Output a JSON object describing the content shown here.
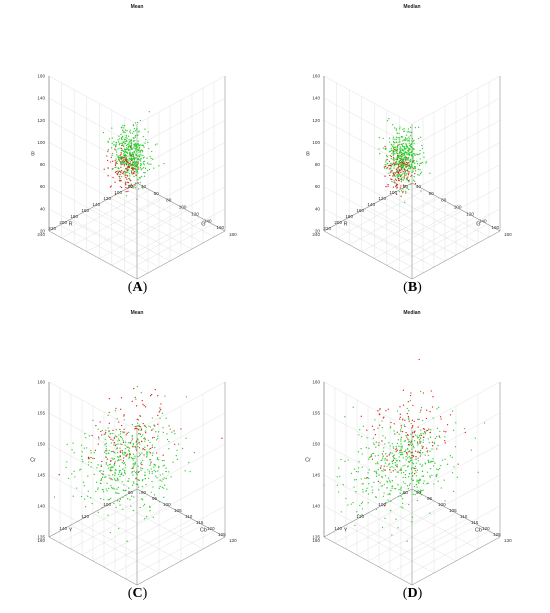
{
  "colors": {
    "class_1": "#2ecc2e",
    "class_2": "#e02020",
    "grid": "#d9d9d9",
    "axis": "#8c8c8c"
  },
  "chart_data": [
    {
      "id": "A",
      "type": "scatter3d",
      "caption_letter": "A",
      "title": "Mean",
      "xlabel": "R",
      "ylabel": "G",
      "zlabel": "B",
      "xlim": [
        60,
        240
      ],
      "ylim": [
        40,
        180
      ],
      "zlim": [
        20,
        180
      ],
      "xticks": [
        "80",
        "100",
        "120",
        "140",
        "160",
        "180",
        "200",
        "220",
        "240"
      ],
      "yticks": [
        "40",
        "60",
        "80",
        "100",
        "120",
        "140",
        "160",
        "180"
      ],
      "zticks": [
        "20",
        "40",
        "60",
        "80",
        "100",
        "120",
        "140",
        "160"
      ],
      "grid": true,
      "series": [
        {
          "color_key": "class_1",
          "center": [
            170,
            115,
            105
          ],
          "spread": [
            28,
            26,
            26
          ],
          "count": 480,
          "corr": 0.9
        },
        {
          "color_key": "class_2",
          "center": [
            150,
            90,
            75
          ],
          "spread": [
            22,
            20,
            18
          ],
          "count": 110,
          "corr": 0.85
        }
      ]
    },
    {
      "id": "B",
      "type": "scatter3d",
      "caption_letter": "B",
      "title": "Median",
      "xlabel": "R",
      "ylabel": "G",
      "zlabel": "B",
      "xlim": [
        60,
        240
      ],
      "ylim": [
        40,
        180
      ],
      "zlim": [
        20,
        180
      ],
      "xticks": [
        "80",
        "100",
        "120",
        "140",
        "160",
        "180",
        "200",
        "220",
        "240"
      ],
      "yticks": [
        "40",
        "60",
        "80",
        "100",
        "120",
        "140",
        "160",
        "180"
      ],
      "zticks": [
        "20",
        "40",
        "60",
        "80",
        "100",
        "120",
        "140",
        "160"
      ],
      "grid": true,
      "series": [
        {
          "color_key": "class_1",
          "center": [
            170,
            112,
            102
          ],
          "spread": [
            28,
            26,
            26
          ],
          "count": 480,
          "corr": 0.9
        },
        {
          "color_key": "class_2",
          "center": [
            148,
            88,
            72
          ],
          "spread": [
            22,
            20,
            18
          ],
          "count": 110,
          "corr": 0.85
        }
      ]
    },
    {
      "id": "C",
      "type": "scatter3d",
      "caption_letter": "C",
      "title": "Mean",
      "xlabel": "Y",
      "ylabel": "Cb",
      "zlabel": "Cr",
      "xlim": [
        80,
        160
      ],
      "ylim": [
        90,
        130
      ],
      "zlim": [
        135,
        160
      ],
      "xticks": [
        "80",
        "100",
        "120",
        "140",
        "160"
      ],
      "yticks": [
        "90",
        "95",
        "100",
        "105",
        "110",
        "115",
        "120",
        "125",
        "130"
      ],
      "zticks": [
        "135",
        "140",
        "145",
        "150",
        "155",
        "160"
      ],
      "grid": true,
      "series": [
        {
          "color_key": "class_1",
          "center": [
            125,
            108,
            147
          ],
          "spread": [
            14,
            7,
            3.2
          ],
          "count": 480,
          "corr": -0.3
        },
        {
          "color_key": "class_2",
          "center": [
            112,
            104,
            149
          ],
          "spread": [
            12,
            6,
            2.8
          ],
          "count": 130,
          "corr": -0.3
        }
      ]
    },
    {
      "id": "D",
      "type": "scatter3d",
      "caption_letter": "D",
      "title": "Median",
      "xlabel": "Y",
      "ylabel": "Cb",
      "zlabel": "Cr",
      "xlim": [
        80,
        160
      ],
      "ylim": [
        90,
        130
      ],
      "zlim": [
        135,
        160
      ],
      "xticks": [
        "80",
        "100",
        "120",
        "140",
        "160"
      ],
      "yticks": [
        "90",
        "95",
        "100",
        "105",
        "110",
        "115",
        "120",
        "125",
        "130"
      ],
      "zticks": [
        "135",
        "140",
        "145",
        "150",
        "155",
        "160"
      ],
      "grid": true,
      "series": [
        {
          "color_key": "class_1",
          "center": [
            125,
            108,
            147
          ],
          "spread": [
            14,
            7,
            3.2
          ],
          "count": 480,
          "corr": -0.3
        },
        {
          "color_key": "class_2",
          "center": [
            112,
            104,
            149
          ],
          "spread": [
            12,
            6,
            2.8
          ],
          "count": 130,
          "corr": -0.3
        }
      ]
    }
  ]
}
